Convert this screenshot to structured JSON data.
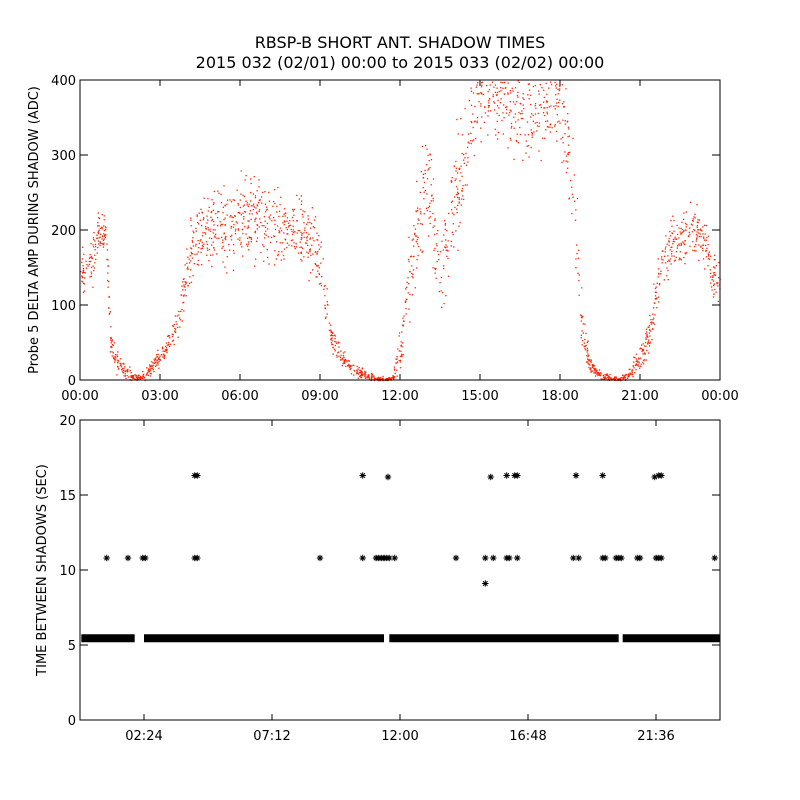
{
  "title": "RBSP-B SHORT ANT. SHADOW TIMES",
  "subtitle": "2015 032 (02/01) 00:00 to 2015 033 (02/02) 00:00",
  "colors": {
    "scatter": "#ff2200",
    "ink": "#000000"
  },
  "chart_data": [
    {
      "type": "scatter",
      "ylabel": "Probe 5 DELTA AMP DURING SHADOW (ADC)",
      "xlim": [
        0,
        24
      ],
      "ylim": [
        0,
        400
      ],
      "xticks": [
        0,
        3,
        6,
        9,
        12,
        15,
        18,
        21,
        24
      ],
      "xticklabels": [
        "00:00",
        "03:00",
        "06:00",
        "09:00",
        "12:00",
        "15:00",
        "18:00",
        "21:00",
        "00:00"
      ],
      "yticks": [
        0,
        100,
        200,
        300,
        400
      ],
      "yticklabels": [
        "0",
        "100",
        "200",
        "300",
        "400"
      ],
      "envelope": {
        "x": [
          0.0,
          0.3,
          0.5,
          0.7,
          0.9,
          1.0,
          1.1,
          1.3,
          1.6,
          1.9,
          2.2,
          2.5,
          2.8,
          3.2,
          3.6,
          3.9,
          4.2,
          4.5,
          5.0,
          5.5,
          6.0,
          6.5,
          7.0,
          7.5,
          8.0,
          8.5,
          8.8,
          9.0,
          9.2,
          9.4,
          9.8,
          10.2,
          10.6,
          10.9,
          11.2,
          11.5,
          11.7,
          12.0,
          12.3,
          12.6,
          12.9,
          13.1,
          13.3,
          13.5,
          13.8,
          14.1,
          14.4,
          14.7,
          15.0,
          15.5,
          16.0,
          16.5,
          17.0,
          17.5,
          17.9,
          18.2,
          18.5,
          18.8,
          19.1,
          19.3,
          19.6,
          19.9,
          20.2,
          20.5,
          20.8,
          21.1,
          21.4,
          21.6,
          21.8,
          22.0,
          22.3,
          22.6,
          22.9,
          23.2,
          23.5,
          23.7,
          24.0
        ],
        "center": [
          145,
          150,
          170,
          195,
          200,
          180,
          60,
          25,
          15,
          8,
          2,
          10,
          25,
          40,
          70,
          120,
          175,
          195,
          200,
          205,
          215,
          210,
          205,
          200,
          195,
          190,
          185,
          160,
          110,
          60,
          30,
          15,
          8,
          5,
          2,
          1,
          2,
          40,
          130,
          200,
          270,
          250,
          200,
          140,
          200,
          250,
          310,
          350,
          380,
          390,
          380,
          370,
          360,
          370,
          380,
          330,
          260,
          80,
          20,
          12,
          5,
          3,
          2,
          5,
          20,
          40,
          70,
          120,
          160,
          175,
          180,
          190,
          200,
          195,
          170,
          140,
          130
        ],
        "spread": [
          20,
          25,
          25,
          20,
          20,
          30,
          20,
          10,
          8,
          6,
          4,
          6,
          8,
          10,
          15,
          25,
          35,
          35,
          40,
          40,
          40,
          40,
          35,
          35,
          35,
          35,
          35,
          30,
          25,
          15,
          10,
          6,
          5,
          4,
          3,
          2,
          3,
          20,
          40,
          50,
          50,
          50,
          50,
          40,
          50,
          60,
          60,
          50,
          40,
          40,
          50,
          60,
          60,
          60,
          50,
          50,
          50,
          30,
          8,
          6,
          4,
          3,
          3,
          4,
          10,
          15,
          20,
          25,
          25,
          25,
          25,
          25,
          25,
          25,
          25,
          25,
          20
        ]
      }
    },
    {
      "type": "scatter",
      "ylabel": "TIME BETWEEN SHADOWS (SEC)",
      "xlim": [
        0,
        24
      ],
      "ylim": [
        0,
        20
      ],
      "xticks": [
        2.4,
        7.2,
        12.0,
        16.8,
        21.6
      ],
      "xticklabels": [
        "02:24",
        "07:12",
        "12:00",
        "16:48",
        "21:36"
      ],
      "yticks": [
        0,
        5,
        10,
        15,
        20
      ],
      "yticklabels": [
        "0",
        "5",
        "10",
        "15",
        "20"
      ],
      "baseline": {
        "y": 5.45,
        "segments": [
          [
            0.05,
            2.05
          ],
          [
            2.4,
            11.4
          ],
          [
            11.6,
            20.2
          ],
          [
            20.35,
            24.0
          ]
        ]
      },
      "points": [
        {
          "x": 1.0,
          "y": 10.8
        },
        {
          "x": 1.8,
          "y": 10.8
        },
        {
          "x": 2.35,
          "y": 10.8
        },
        {
          "x": 2.45,
          "y": 10.8
        },
        {
          "x": 4.3,
          "y": 10.8
        },
        {
          "x": 4.4,
          "y": 10.8
        },
        {
          "x": 4.3,
          "y": 16.3
        },
        {
          "x": 4.4,
          "y": 16.3
        },
        {
          "x": 9.0,
          "y": 10.8
        },
        {
          "x": 10.6,
          "y": 16.3
        },
        {
          "x": 10.6,
          "y": 10.8
        },
        {
          "x": 11.1,
          "y": 10.8
        },
        {
          "x": 11.2,
          "y": 10.8
        },
        {
          "x": 11.3,
          "y": 10.8
        },
        {
          "x": 11.4,
          "y": 10.8
        },
        {
          "x": 11.5,
          "y": 10.8
        },
        {
          "x": 11.6,
          "y": 10.8
        },
        {
          "x": 11.8,
          "y": 10.8
        },
        {
          "x": 11.55,
          "y": 16.2
        },
        {
          "x": 14.1,
          "y": 10.8
        },
        {
          "x": 15.2,
          "y": 9.1
        },
        {
          "x": 15.2,
          "y": 10.8
        },
        {
          "x": 15.5,
          "y": 10.8
        },
        {
          "x": 15.4,
          "y": 16.2
        },
        {
          "x": 16.0,
          "y": 10.8
        },
        {
          "x": 16.1,
          "y": 10.8
        },
        {
          "x": 16.0,
          "y": 16.3
        },
        {
          "x": 16.3,
          "y": 16.3
        },
        {
          "x": 16.4,
          "y": 16.3
        },
        {
          "x": 16.4,
          "y": 10.8
        },
        {
          "x": 18.5,
          "y": 10.8
        },
        {
          "x": 18.7,
          "y": 10.8
        },
        {
          "x": 18.6,
          "y": 16.3
        },
        {
          "x": 19.6,
          "y": 16.3
        },
        {
          "x": 19.6,
          "y": 10.8
        },
        {
          "x": 19.7,
          "y": 10.8
        },
        {
          "x": 20.1,
          "y": 10.8
        },
        {
          "x": 20.2,
          "y": 10.8
        },
        {
          "x": 20.3,
          "y": 10.8
        },
        {
          "x": 20.9,
          "y": 10.8
        },
        {
          "x": 21.0,
          "y": 10.8
        },
        {
          "x": 21.6,
          "y": 10.8
        },
        {
          "x": 21.7,
          "y": 10.8
        },
        {
          "x": 21.8,
          "y": 10.8
        },
        {
          "x": 21.55,
          "y": 16.2
        },
        {
          "x": 21.7,
          "y": 16.3
        },
        {
          "x": 21.8,
          "y": 16.3
        },
        {
          "x": 23.8,
          "y": 10.8
        }
      ]
    }
  ]
}
